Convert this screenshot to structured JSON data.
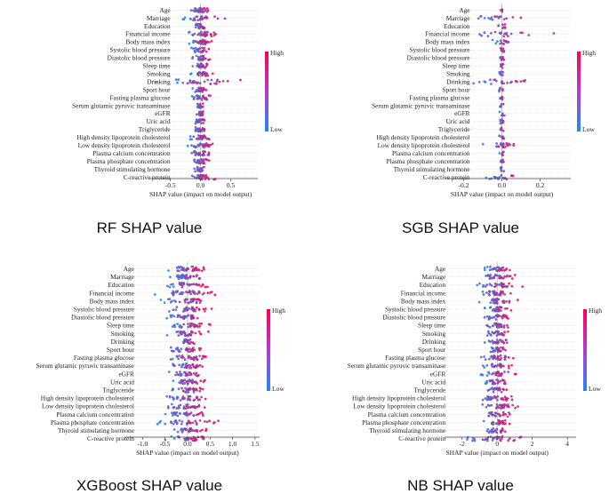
{
  "figure": {
    "colormap": {
      "low": "#1e88ff",
      "high": "#ff0052"
    }
  },
  "chart_data": [
    {
      "type": "scatter",
      "subtype": "shap-beeswarm",
      "title": "RF SHAP value",
      "xlabel": "SHAP value (impact on model output)",
      "xlim": [
        -0.85,
        0.95
      ],
      "xticks": [
        -0.5,
        0.0,
        0.5
      ],
      "xtick_labels": [
        "-0.5",
        "0.0",
        "0.5"
      ],
      "colorbar": {
        "high": "High",
        "low": "Low"
      },
      "features": [
        "Age",
        "Marriage",
        "Education",
        "Financial income",
        "Body mass index",
        "Systolic blood pressure",
        "Diastolic blood pressure",
        "Sleep time",
        "Smoking",
        "Drinking",
        "Sport hour",
        "Fasting plasma glucose",
        "Serum glutamic pyruvic transaminase",
        "eGFR",
        "Uric acid",
        "Triglyceride",
        "High density lipoprotein cholesterol",
        "Low density lipoprotein cholesterol",
        "Plasma calcium concentration",
        "Plasma phosphate concentration",
        "Thyroid stimulating hormone",
        "C-reactive protein"
      ],
      "spread": [
        0.2,
        0.45,
        0.15,
        0.35,
        0.3,
        0.2,
        0.2,
        0.2,
        0.25,
        0.9,
        0.15,
        0.2,
        0.1,
        0.08,
        0.12,
        0.15,
        0.25,
        0.3,
        0.25,
        0.2,
        0.15,
        0.3
      ],
      "density": [
        30,
        26,
        24,
        30,
        28,
        24,
        24,
        22,
        24,
        30,
        22,
        26,
        18,
        18,
        20,
        24,
        28,
        30,
        28,
        26,
        24,
        30
      ]
    },
    {
      "type": "scatter",
      "subtype": "shap-beeswarm",
      "title": "SGB SHAP value",
      "xlabel": "SHAP value (impact on model output)",
      "xlim": [
        -0.3,
        0.36
      ],
      "xticks": [
        -0.2,
        0.0,
        0.2
      ],
      "xtick_labels": [
        "-0.2",
        "0.0",
        "0.2"
      ],
      "colorbar": {
        "high": "High",
        "low": "Low"
      },
      "features": [
        "Age",
        "Marriage",
        "Education",
        "Financial income",
        "Body mass index",
        "Systolic blood pressure",
        "Diastolic blood pressure",
        "Sleep time",
        "Smoking",
        "Drinking",
        "Sport hour",
        "Fasting plasma glucose",
        "Serum glutamic pyruvic transaminase",
        "eGFR",
        "Uric acid",
        "Triglyceride",
        "High density lipoprotein cholesterol",
        "Low density lipoprotein cholesterol",
        "Plasma calcium concentration",
        "Plasma phosphate concentration",
        "Thyroid stimulating hormone",
        "C-reactive protein"
      ],
      "spread": [
        0.01,
        0.17,
        0.03,
        0.28,
        0.06,
        0.03,
        0.02,
        0.02,
        0.02,
        0.2,
        0.02,
        0.03,
        0.02,
        0.02,
        0.02,
        0.02,
        0.02,
        0.12,
        0.02,
        0.02,
        0.02,
        0.1
      ],
      "density": [
        4,
        18,
        8,
        20,
        14,
        8,
        8,
        8,
        8,
        22,
        6,
        8,
        6,
        6,
        8,
        6,
        6,
        24,
        6,
        6,
        6,
        18
      ]
    },
    {
      "type": "scatter",
      "subtype": "shap-beeswarm",
      "title": "XGBoost SHAP value",
      "xlabel": "SHAP value (impact on model output)",
      "xlim": [
        -1.4,
        1.6
      ],
      "xticks": [
        -1.0,
        -0.5,
        0.0,
        0.5,
        1.0,
        1.5
      ],
      "xtick_labels": [
        "-1.0",
        "-0.5",
        "0.0",
        "0.5",
        "1.0",
        "1.5"
      ],
      "colorbar": {
        "high": "High",
        "low": "Low"
      },
      "features": [
        "Age",
        "Marriage",
        "Education",
        "Financial income",
        "Body mass index",
        "Systolic blood pressure",
        "Diastolic blood pressure",
        "Sleep time",
        "Smoking",
        "Drinking",
        "Sport hour",
        "Fasting plasma glucose",
        "Serum glutamic pyruvic transaminase",
        "eGFR",
        "Uric acid",
        "Triglyceride",
        "High density lipoprotein cholesterol",
        "Low density lipoprotein cholesterol",
        "Plasma calcium concentration",
        "Plasma phosphate concentration",
        "Thyroid stimulating hormone",
        "C-reactive protein"
      ],
      "spread": [
        0.5,
        0.55,
        0.55,
        0.85,
        0.7,
        0.6,
        0.6,
        0.6,
        0.55,
        0.25,
        0.5,
        0.55,
        0.6,
        0.5,
        0.6,
        0.55,
        0.6,
        0.65,
        0.6,
        0.9,
        0.55,
        0.6
      ],
      "density": [
        34,
        32,
        32,
        36,
        34,
        32,
        32,
        32,
        32,
        22,
        30,
        32,
        32,
        30,
        32,
        32,
        34,
        34,
        32,
        34,
        30,
        32
      ]
    },
    {
      "type": "scatter",
      "subtype": "shap-beeswarm",
      "title": "NB SHAP value",
      "xlabel": "SHAP value (impact on model output)",
      "xlim": [
        -3.0,
        4.5
      ],
      "xticks": [
        -2,
        0,
        2,
        4
      ],
      "xtick_labels": [
        "-2",
        "0",
        "2",
        "4"
      ],
      "colorbar": {
        "high": "High",
        "low": "Low"
      },
      "features": [
        "Age",
        "Marriage",
        "Education",
        "Financial income",
        "Body mass index",
        "Systolic blood pressure",
        "Diastolic blood pressure",
        "Sleep time",
        "Smoking",
        "Drinking",
        "Sport hour",
        "Fasting plasma glucose",
        "Serum glutamic pyruvic transaminase",
        "eGFR",
        "Uric acid",
        "Triglyceride",
        "High density lipoprotein cholesterol",
        "Low density lipoprotein cholesterol",
        "Plasma calcium concentration",
        "Plasma phosphate concentration",
        "Thyroid stimulating hormone",
        "C-reactive protein"
      ],
      "spread": [
        1.0,
        1.4,
        1.6,
        1.2,
        1.3,
        1.0,
        1.1,
        1.0,
        1.0,
        1.0,
        0.8,
        1.2,
        1.1,
        1.4,
        1.1,
        1.0,
        1.8,
        1.6,
        1.0,
        0.9,
        0.9,
        2.2
      ],
      "density": [
        30,
        30,
        32,
        30,
        30,
        28,
        28,
        28,
        26,
        24,
        24,
        28,
        28,
        28,
        28,
        26,
        32,
        32,
        26,
        24,
        24,
        32
      ]
    }
  ]
}
